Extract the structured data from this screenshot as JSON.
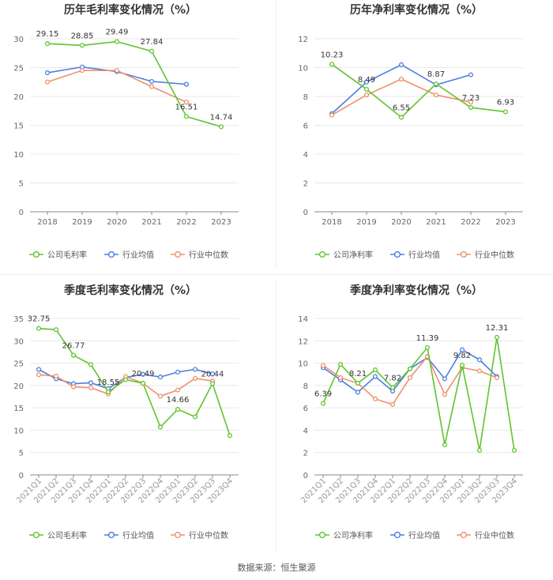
{
  "colors": {
    "company": "#5fc42e",
    "avg": "#4a7ee0",
    "median": "#f0906a",
    "grid": "#e8e8e8",
    "axis": "#888888",
    "text": "#666666"
  },
  "chart_data": [
    {
      "type": "line",
      "title": "历年毛利率变化情况（%）",
      "categories": [
        "2018",
        "2019",
        "2020",
        "2021",
        "2022",
        "2023"
      ],
      "ylim": [
        0,
        30
      ],
      "yticks": [
        0,
        5,
        10,
        15,
        20,
        25,
        30
      ],
      "series": [
        {
          "name": "公司毛利率",
          "key": "company",
          "values": [
            29.15,
            28.85,
            29.49,
            27.84,
            16.51,
            14.74
          ],
          "labels": [
            "29.15",
            "28.85",
            "29.49",
            "27.84",
            "16.51",
            "14.74"
          ]
        },
        {
          "name": "行业均值",
          "key": "avg",
          "values": [
            24.1,
            25.1,
            24.3,
            22.6,
            22.1,
            null
          ]
        },
        {
          "name": "行业中位数",
          "key": "median",
          "values": [
            22.5,
            24.5,
            24.5,
            21.7,
            19.0,
            null
          ]
        }
      ]
    },
    {
      "type": "line",
      "title": "历年净利率变化情况（%）",
      "categories": [
        "2018",
        "2019",
        "2020",
        "2021",
        "2022",
        "2023"
      ],
      "ylim": [
        0,
        12
      ],
      "yticks": [
        0,
        2,
        4,
        6,
        8,
        10,
        12
      ],
      "series": [
        {
          "name": "公司净利率",
          "key": "company",
          "values": [
            10.23,
            8.49,
            6.55,
            8.87,
            7.23,
            6.93
          ],
          "labels": [
            "10.23",
            "8.49",
            "6.55",
            "8.87",
            "7.23",
            "6.93"
          ]
        },
        {
          "name": "行业均值",
          "key": "avg",
          "values": [
            6.8,
            9.0,
            10.2,
            8.8,
            9.5,
            null
          ]
        },
        {
          "name": "行业中位数",
          "key": "median",
          "values": [
            6.7,
            8.1,
            9.2,
            8.1,
            7.6,
            null
          ]
        }
      ]
    },
    {
      "type": "line",
      "title": "季度毛利率变化情况（%）",
      "categories": [
        "2021Q1",
        "2021Q2",
        "2021Q3",
        "2021Q4",
        "2022Q1",
        "2022Q2",
        "2022Q3",
        "2022Q4",
        "2023Q1",
        "2023Q2",
        "2023Q3",
        "2023Q4"
      ],
      "ylim": [
        0,
        35
      ],
      "yticks": [
        0,
        5,
        10,
        15,
        20,
        25,
        30,
        35
      ],
      "series": [
        {
          "name": "公司毛利率",
          "key": "company",
          "values": [
            32.75,
            32.5,
            26.77,
            24.7,
            18.55,
            21.3,
            20.49,
            10.7,
            14.66,
            13.0,
            20.44,
            8.8
          ],
          "labels": [
            "32.75",
            "",
            "26.77",
            "",
            "18.55",
            "",
            "20.49",
            "",
            "14.66",
            "",
            "20.44",
            ""
          ]
        },
        {
          "name": "行业均值",
          "key": "avg",
          "values": [
            23.6,
            21.5,
            20.4,
            20.6,
            19.3,
            21.8,
            22.5,
            21.9,
            23.0,
            23.6,
            22.6,
            null
          ]
        },
        {
          "name": "行业中位数",
          "key": "median",
          "values": [
            22.4,
            22.1,
            19.7,
            19.5,
            18.1,
            22.0,
            20.5,
            17.6,
            19.0,
            21.6,
            21.0,
            null
          ]
        }
      ]
    },
    {
      "type": "line",
      "title": "季度净利率变化情况（%）",
      "categories": [
        "2021Q1",
        "2021Q2",
        "2021Q3",
        "2021Q4",
        "2022Q1",
        "2022Q2",
        "2022Q3",
        "2022Q4",
        "2023Q1",
        "2023Q2",
        "2023Q3",
        "2023Q4"
      ],
      "ylim": [
        0,
        14
      ],
      "yticks": [
        0,
        2,
        4,
        6,
        8,
        10,
        12,
        14
      ],
      "series": [
        {
          "name": "公司净利率",
          "key": "company",
          "values": [
            6.39,
            9.9,
            8.21,
            9.4,
            7.82,
            9.5,
            11.39,
            2.7,
            9.82,
            2.2,
            12.31,
            2.2
          ],
          "labels": [
            "6.39",
            "",
            "8.21",
            "",
            "7.82",
            "",
            "11.39",
            "",
            "9.82",
            "",
            "12.31",
            ""
          ]
        },
        {
          "name": "行业均值",
          "key": "avg",
          "values": [
            9.6,
            8.5,
            7.4,
            8.8,
            7.5,
            9.5,
            10.5,
            8.6,
            11.2,
            10.3,
            8.8,
            null
          ]
        },
        {
          "name": "行业中位数",
          "key": "median",
          "values": [
            9.8,
            8.7,
            8.2,
            6.8,
            6.3,
            8.7,
            10.6,
            7.2,
            9.6,
            9.3,
            8.7,
            null
          ]
        }
      ]
    }
  ],
  "footer": {
    "source": "数据来源：恒生聚源"
  }
}
